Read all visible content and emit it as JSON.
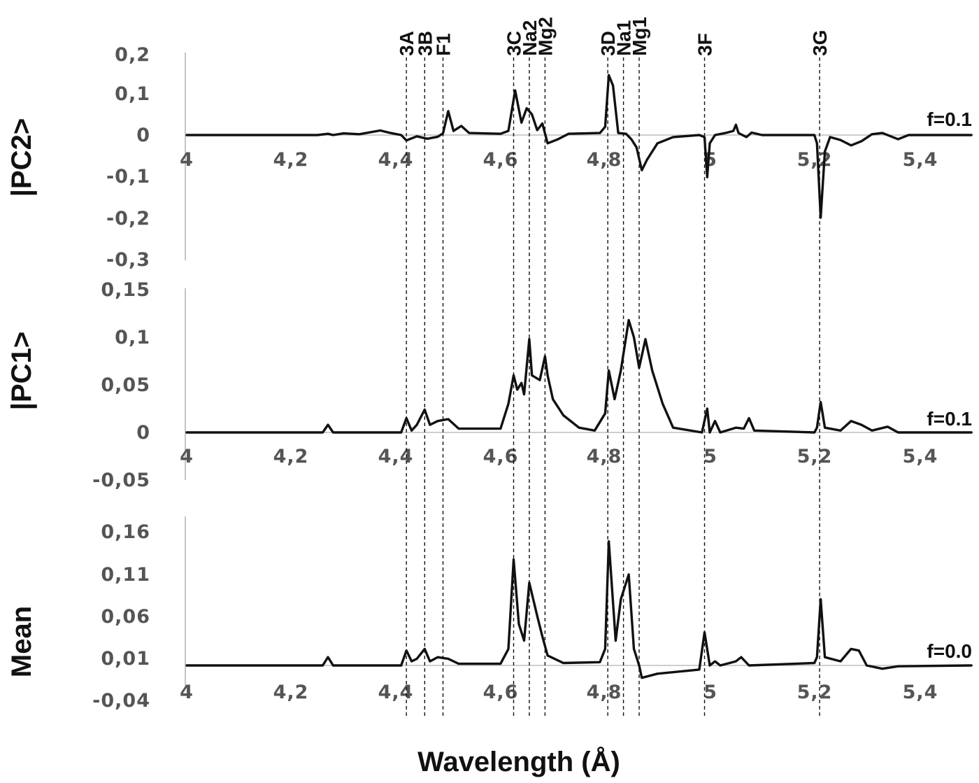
{
  "chart_data": {
    "type": "line",
    "xlabel": "Wavelength (Å)",
    "x_ticks": [
      "4",
      "4,2",
      "4,4",
      "4,6",
      "4,8",
      "5",
      "5,2",
      "5,4"
    ],
    "xlim": [
      4.0,
      5.5
    ],
    "markers": [
      {
        "label": "3A",
        "x": 4.42
      },
      {
        "label": "3B",
        "x": 4.455
      },
      {
        "label": "F1",
        "x": 4.49
      },
      {
        "label": "3C",
        "x": 4.625
      },
      {
        "label": "Na2",
        "x": 4.655
      },
      {
        "label": "Mg2",
        "x": 4.685
      },
      {
        "label": "3D",
        "x": 4.805
      },
      {
        "label": "Na1",
        "x": 4.835
      },
      {
        "label": "Mg1",
        "x": 4.865
      },
      {
        "label": "3F",
        "x": 4.99
      },
      {
        "label": "3G",
        "x": 5.21
      }
    ],
    "panels": [
      {
        "id": "pc2",
        "ylabel": "|PC2>",
        "annotation": "f=0.1",
        "ylim": [
          -0.3,
          0.2
        ],
        "y_ticks": [
          {
            "v": 0.2,
            "label": "0,2"
          },
          {
            "v": 0.1,
            "label": "0,1"
          },
          {
            "v": 0,
            "label": "0"
          },
          {
            "v": -0.1,
            "label": "-0,1"
          },
          {
            "v": -0.2,
            "label": "-0,2"
          },
          {
            "v": -0.3,
            "label": "-0,3"
          }
        ],
        "points": [
          [
            4.0,
            0
          ],
          [
            4.25,
            0
          ],
          [
            4.27,
            0.003
          ],
          [
            4.28,
            0
          ],
          [
            4.3,
            0.004
          ],
          [
            4.33,
            0.002
          ],
          [
            4.37,
            0.011
          ],
          [
            4.39,
            0.005
          ],
          [
            4.41,
            0
          ],
          [
            4.42,
            -0.013
          ],
          [
            4.44,
            -0.003
          ],
          [
            4.46,
            -0.009
          ],
          [
            4.48,
            -0.004
          ],
          [
            4.49,
            0.004
          ],
          [
            4.5,
            0.058
          ],
          [
            4.51,
            0.01
          ],
          [
            4.525,
            0.022
          ],
          [
            4.54,
            0.005
          ],
          [
            4.6,
            0.003
          ],
          [
            4.615,
            0.01
          ],
          [
            4.628,
            0.108
          ],
          [
            4.64,
            0.03
          ],
          [
            4.65,
            0.065
          ],
          [
            4.66,
            0.05
          ],
          [
            4.67,
            0.012
          ],
          [
            4.68,
            0.028
          ],
          [
            4.69,
            -0.02
          ],
          [
            4.71,
            -0.01
          ],
          [
            4.73,
            0.003
          ],
          [
            4.79,
            0.005
          ],
          [
            4.8,
            0.02
          ],
          [
            4.807,
            0.145
          ],
          [
            4.815,
            0.12
          ],
          [
            4.825,
            0.005
          ],
          [
            4.84,
            0.003
          ],
          [
            4.85,
            -0.01
          ],
          [
            4.86,
            -0.03
          ],
          [
            4.87,
            -0.085
          ],
          [
            4.88,
            -0.06
          ],
          [
            4.9,
            -0.02
          ],
          [
            4.93,
            -0.005
          ],
          [
            4.98,
            0
          ],
          [
            4.99,
            -0.005
          ],
          [
            4.995,
            -0.102
          ],
          [
            5.0,
            -0.02
          ],
          [
            5.01,
            0
          ],
          [
            5.03,
            0.005
          ],
          [
            5.045,
            0.01
          ],
          [
            5.05,
            0.025
          ],
          [
            5.055,
            0.005
          ],
          [
            5.07,
            -0.005
          ],
          [
            5.08,
            0.006
          ],
          [
            5.1,
            0
          ],
          [
            5.2,
            0
          ],
          [
            5.205,
            -0.02
          ],
          [
            5.212,
            -0.2
          ],
          [
            5.22,
            -0.04
          ],
          [
            5.23,
            -0.005
          ],
          [
            5.25,
            -0.012
          ],
          [
            5.27,
            -0.025
          ],
          [
            5.29,
            -0.015
          ],
          [
            5.31,
            0.002
          ],
          [
            5.33,
            0.005
          ],
          [
            5.36,
            -0.01
          ],
          [
            5.38,
            0
          ],
          [
            5.5,
            0
          ]
        ]
      },
      {
        "id": "pc1",
        "ylabel": "|PC1>",
        "annotation": "f=0.1",
        "ylim": [
          -0.05,
          0.15
        ],
        "y_ticks": [
          {
            "v": 0.15,
            "label": "0,15"
          },
          {
            "v": 0.1,
            "label": "0,1"
          },
          {
            "v": 0.05,
            "label": "0,05"
          },
          {
            "v": 0,
            "label": "0"
          },
          {
            "v": -0.05,
            "label": "-0,05"
          }
        ],
        "points": [
          [
            4.0,
            0
          ],
          [
            4.26,
            0
          ],
          [
            4.27,
            0.008
          ],
          [
            4.28,
            0
          ],
          [
            4.41,
            0
          ],
          [
            4.42,
            0.015
          ],
          [
            4.43,
            0.002
          ],
          [
            4.44,
            0.008
          ],
          [
            4.455,
            0.024
          ],
          [
            4.465,
            0.008
          ],
          [
            4.48,
            0.012
          ],
          [
            4.5,
            0.014
          ],
          [
            4.52,
            0.004
          ],
          [
            4.6,
            0.004
          ],
          [
            4.615,
            0.03
          ],
          [
            4.625,
            0.06
          ],
          [
            4.632,
            0.045
          ],
          [
            4.64,
            0.052
          ],
          [
            4.645,
            0.04
          ],
          [
            4.655,
            0.098
          ],
          [
            4.66,
            0.06
          ],
          [
            4.675,
            0.055
          ],
          [
            4.685,
            0.08
          ],
          [
            4.69,
            0.06
          ],
          [
            4.7,
            0.035
          ],
          [
            4.72,
            0.018
          ],
          [
            4.75,
            0.005
          ],
          [
            4.78,
            0.002
          ],
          [
            4.8,
            0.02
          ],
          [
            4.807,
            0.065
          ],
          [
            4.818,
            0.035
          ],
          [
            4.83,
            0.065
          ],
          [
            4.845,
            0.118
          ],
          [
            4.855,
            0.1
          ],
          [
            4.865,
            0.068
          ],
          [
            4.877,
            0.098
          ],
          [
            4.89,
            0.065
          ],
          [
            4.91,
            0.03
          ],
          [
            4.93,
            0.005
          ],
          [
            4.985,
            0
          ],
          [
            4.995,
            0.025
          ],
          [
            5.0,
            0
          ],
          [
            5.01,
            0.012
          ],
          [
            5.02,
            0
          ],
          [
            5.05,
            0.005
          ],
          [
            5.065,
            0.004
          ],
          [
            5.075,
            0.015
          ],
          [
            5.085,
            0.002
          ],
          [
            5.2,
            0
          ],
          [
            5.205,
            0.005
          ],
          [
            5.212,
            0.032
          ],
          [
            5.22,
            0.005
          ],
          [
            5.25,
            0.002
          ],
          [
            5.27,
            0.012
          ],
          [
            5.29,
            0.008
          ],
          [
            5.31,
            0.002
          ],
          [
            5.34,
            0.006
          ],
          [
            5.36,
            0
          ],
          [
            5.5,
            0
          ]
        ]
      },
      {
        "id": "mean",
        "ylabel": "Mean",
        "annotation": "f=0.0",
        "ylim": [
          -0.04,
          0.16
        ],
        "y_ticks": [
          {
            "v": 0.16,
            "label": "0,16"
          },
          {
            "v": 0.11,
            "label": "0,11"
          },
          {
            "v": 0.06,
            "label": "0,06"
          },
          {
            "v": 0.01,
            "label": "0,01"
          },
          {
            "v": -0.04,
            "label": "-0,04"
          }
        ],
        "points": [
          [
            4.0,
            0
          ],
          [
            4.26,
            0
          ],
          [
            4.27,
            0.01
          ],
          [
            4.28,
            0
          ],
          [
            4.41,
            0
          ],
          [
            4.42,
            0.018
          ],
          [
            4.43,
            0.005
          ],
          [
            4.44,
            0.008
          ],
          [
            4.455,
            0.02
          ],
          [
            4.465,
            0.005
          ],
          [
            4.48,
            0.01
          ],
          [
            4.5,
            0.008
          ],
          [
            4.52,
            0.002
          ],
          [
            4.6,
            0.002
          ],
          [
            4.615,
            0.02
          ],
          [
            4.625,
            0.128
          ],
          [
            4.635,
            0.05
          ],
          [
            4.645,
            0.03
          ],
          [
            4.655,
            0.1
          ],
          [
            4.67,
            0.06
          ],
          [
            4.68,
            0.035
          ],
          [
            4.69,
            0.012
          ],
          [
            4.72,
            0.003
          ],
          [
            4.79,
            0.004
          ],
          [
            4.8,
            0.02
          ],
          [
            4.807,
            0.15
          ],
          [
            4.82,
            0.03
          ],
          [
            4.83,
            0.08
          ],
          [
            4.845,
            0.11
          ],
          [
            4.855,
            0.02
          ],
          [
            4.865,
            0
          ],
          [
            4.87,
            -0.015
          ],
          [
            4.9,
            -0.01
          ],
          [
            4.98,
            -0.005
          ],
          [
            4.99,
            0.04
          ],
          [
            5.0,
            0
          ],
          [
            5.01,
            0.005
          ],
          [
            5.02,
            0
          ],
          [
            5.05,
            0.005
          ],
          [
            5.06,
            0.01
          ],
          [
            5.075,
            0
          ],
          [
            5.2,
            0.003
          ],
          [
            5.205,
            0.01
          ],
          [
            5.212,
            0.08
          ],
          [
            5.22,
            0.01
          ],
          [
            5.25,
            0.005
          ],
          [
            5.27,
            0.02
          ],
          [
            5.285,
            0.018
          ],
          [
            5.3,
            0
          ],
          [
            5.33,
            -0.004
          ],
          [
            5.36,
            -0.001
          ],
          [
            5.5,
            0
          ]
        ]
      }
    ]
  }
}
